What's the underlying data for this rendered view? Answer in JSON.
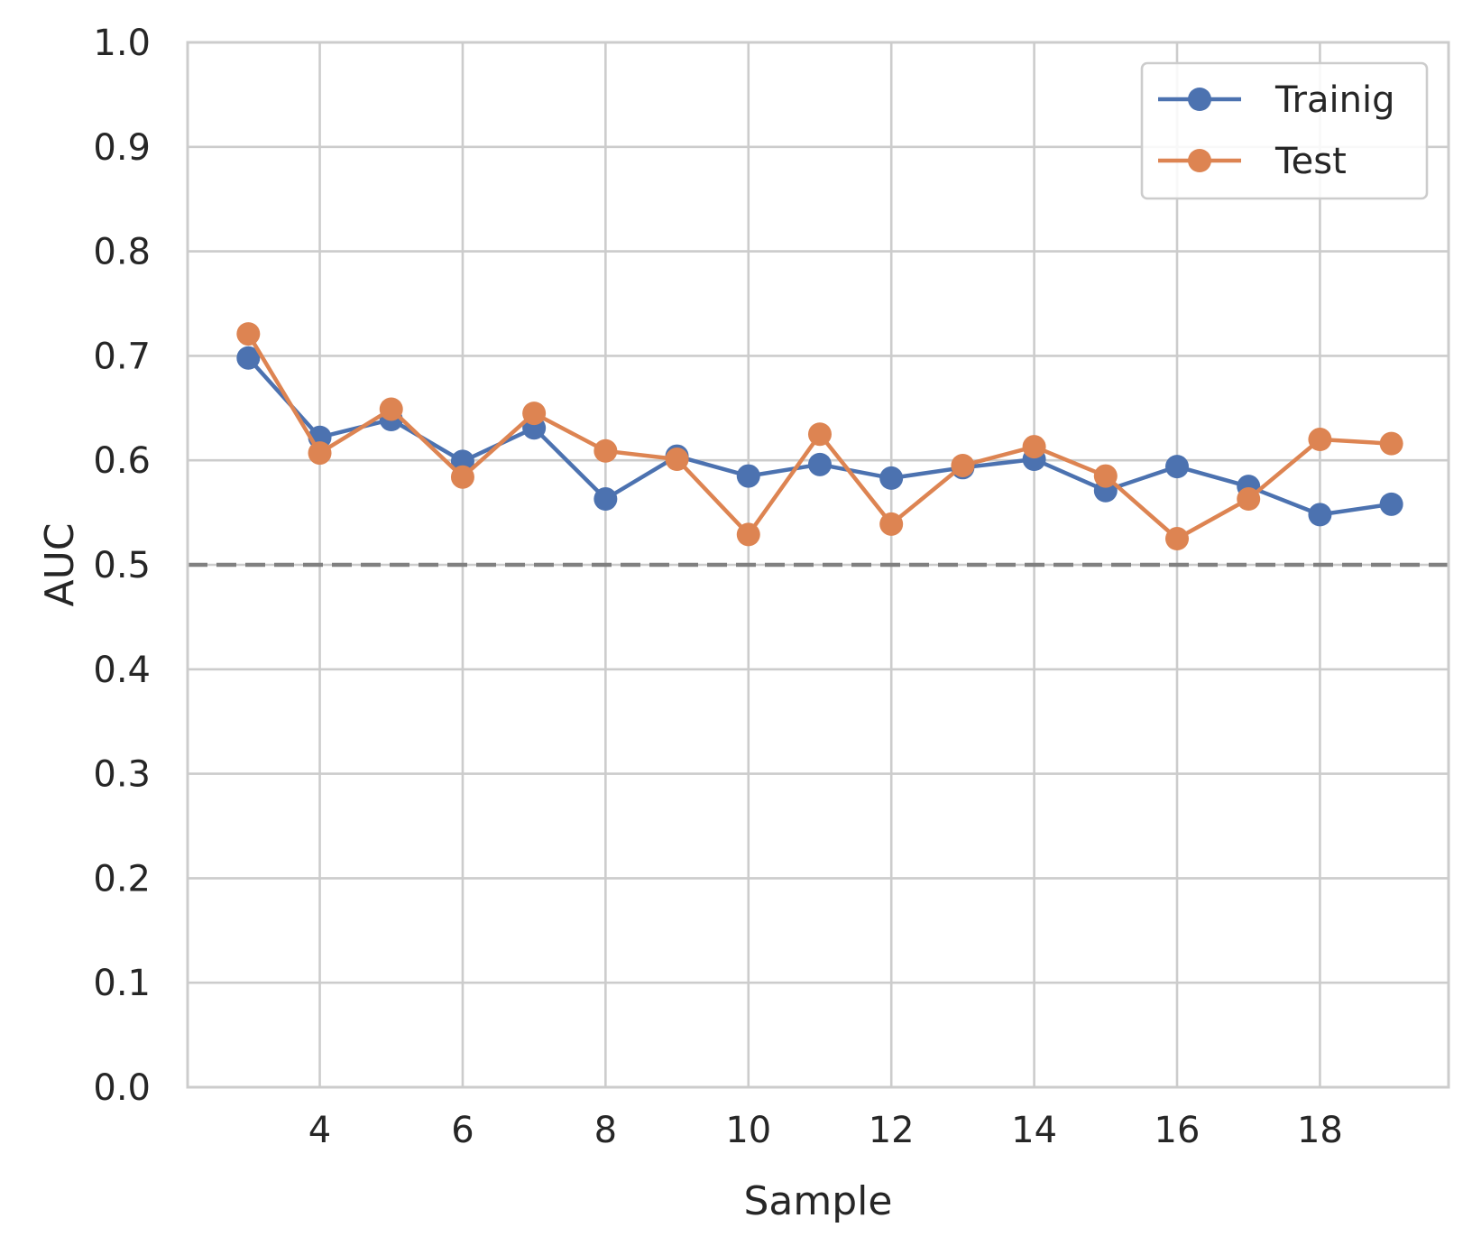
{
  "chart_data": {
    "type": "line",
    "title": "",
    "xlabel": "Sample",
    "ylabel": "AUC",
    "xlim": [
      2.15,
      19.8
    ],
    "ylim": [
      0.0,
      1.0
    ],
    "xticks": [
      4,
      6,
      8,
      10,
      12,
      14,
      16,
      18
    ],
    "yticks": [
      0.0,
      0.1,
      0.2,
      0.3,
      0.4,
      0.5,
      0.6,
      0.7,
      0.8,
      0.9,
      1.0
    ],
    "xtick_labels": [
      "4",
      "6",
      "8",
      "10",
      "12",
      "14",
      "16",
      "18"
    ],
    "ytick_labels": [
      "0.0",
      "0.1",
      "0.2",
      "0.3",
      "0.4",
      "0.5",
      "0.6",
      "0.7",
      "0.8",
      "0.9",
      "1.0"
    ],
    "grid": true,
    "legend_position": "top-right",
    "reference_line": {
      "y": 0.5,
      "style": "dashed",
      "color": "#808080"
    },
    "x": [
      3,
      4,
      5,
      6,
      7,
      8,
      9,
      10,
      11,
      12,
      13,
      14,
      15,
      16,
      17,
      18,
      19
    ],
    "series": [
      {
        "name": "Trainig",
        "color": "#4c72b0",
        "values": [
          0.698,
          0.622,
          0.639,
          0.599,
          0.631,
          0.563,
          0.604,
          0.585,
          0.596,
          0.583,
          0.593,
          0.601,
          0.571,
          0.594,
          0.575,
          0.548,
          0.558
        ]
      },
      {
        "name": "Test",
        "color": "#dd8452",
        "values": [
          0.721,
          0.607,
          0.649,
          0.584,
          0.645,
          0.609,
          0.601,
          0.529,
          0.625,
          0.539,
          0.595,
          0.613,
          0.585,
          0.525,
          0.563,
          0.62,
          0.616
        ]
      }
    ]
  }
}
